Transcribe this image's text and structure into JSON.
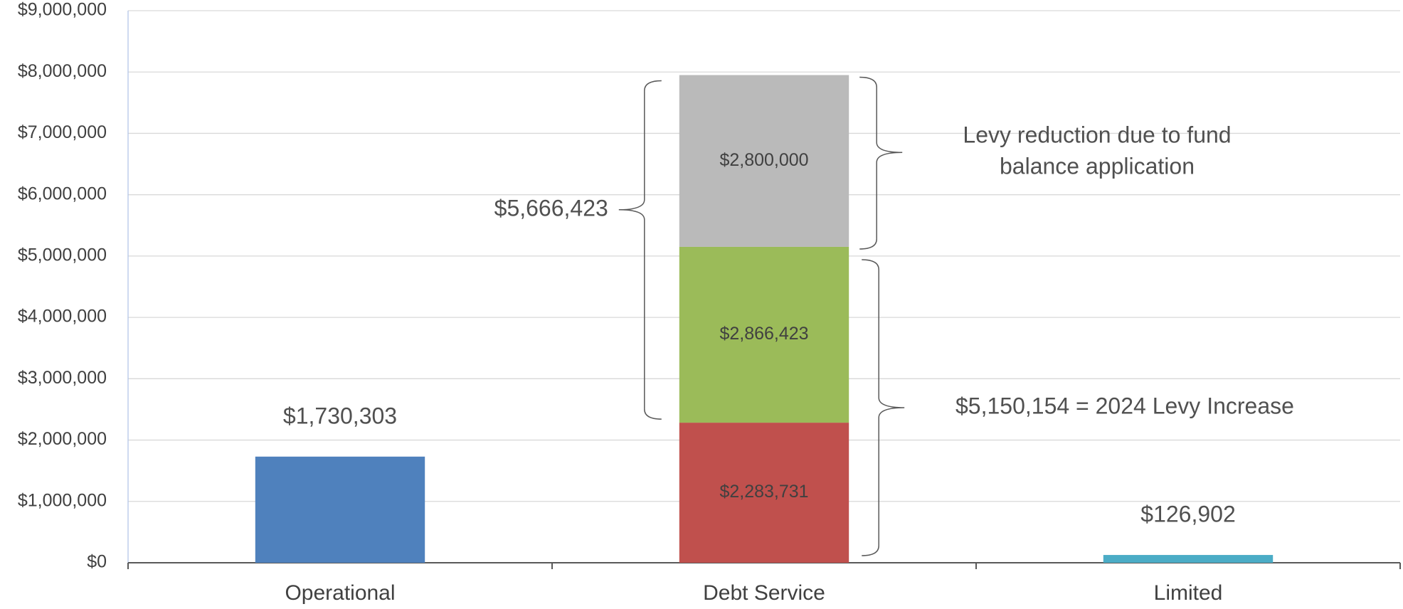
{
  "chart_data": {
    "type": "stacked_bar",
    "categories": [
      "Operational",
      "Debt Service",
      "Limited"
    ],
    "series": [
      {
        "color": "#4f81bd",
        "values": [
          1730303,
          null,
          null
        ],
        "value_labels": [
          "$1,730,303",
          null,
          null
        ]
      },
      {
        "color": "#c0504d",
        "values": [
          null,
          2283731,
          null
        ],
        "value_labels": [
          null,
          "$2,283,731",
          null
        ]
      },
      {
        "color": "#9bbb59",
        "values": [
          null,
          2866423,
          null
        ],
        "value_labels": [
          null,
          "$2,866,423",
          null
        ]
      },
      {
        "color": "#bababa",
        "values": [
          null,
          2800000,
          null
        ],
        "value_labels": [
          null,
          "$2,800,000",
          null
        ]
      },
      {
        "color": "#4bacc6",
        "values": [
          null,
          null,
          126902
        ],
        "value_labels": [
          null,
          null,
          "$126,902"
        ]
      }
    ],
    "ylim": [
      0,
      9000000
    ],
    "yticks": [
      {
        "value": 0,
        "label": "$0"
      },
      {
        "value": 1000000,
        "label": "$1,000,000"
      },
      {
        "value": 2000000,
        "label": "$2,000,000"
      },
      {
        "value": 3000000,
        "label": "$3,000,000"
      },
      {
        "value": 4000000,
        "label": "$4,000,000"
      },
      {
        "value": 5000000,
        "label": "$5,000,000"
      },
      {
        "value": 6000000,
        "label": "$6,000,000"
      },
      {
        "value": 7000000,
        "label": "$7,000,000"
      },
      {
        "value": 8000000,
        "label": "$8,000,000"
      },
      {
        "value": 9000000,
        "label": "$9,000,000"
      }
    ],
    "grid": true,
    "annotations": [
      "$5,666,423",
      "Levy reduction due to fund",
      "balance application",
      "$5,150,154 = 2024 Levy Increase"
    ]
  }
}
